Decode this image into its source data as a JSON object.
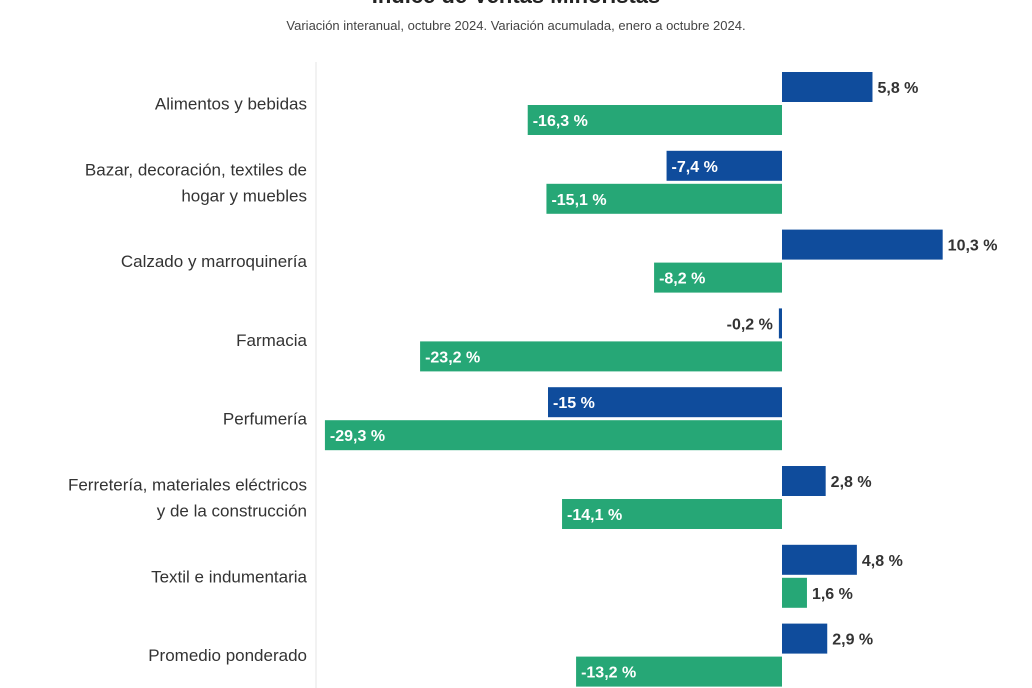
{
  "chart_data": {
    "type": "bar",
    "orientation": "horizontal",
    "title": "Índice de Ventas Minoristas",
    "subtitle": "Variación interanual, octubre 2024. Variación acumulada, enero a octubre 2024.",
    "categories": [
      [
        "Alimentos y bebidas"
      ],
      [
        "Bazar, decoración, textiles de",
        "hogar y muebles"
      ],
      [
        "Calzado y marroquinería"
      ],
      [
        "Farmacia"
      ],
      [
        "Perfumería"
      ],
      [
        "Ferretería, materiales eléctricos",
        "y de la construcción"
      ],
      [
        "Textil e indumentaria"
      ],
      [
        "Promedio ponderado"
      ]
    ],
    "series": [
      {
        "name": "Variación interanual, octubre 2024",
        "color": "#0f4c9c",
        "values": [
          5.8,
          -7.4,
          10.3,
          -0.2,
          -15,
          2.8,
          4.8,
          2.9
        ],
        "labels": [
          "5,8 %",
          "-7,4 %",
          "10,3 %",
          "-0,2 %",
          "-15 %",
          "2,8 %",
          "4,8 %",
          "2,9 %"
        ]
      },
      {
        "name": "Variación acumulada, enero a octubre 2024",
        "color": "#26a776",
        "values": [
          -16.3,
          -15.1,
          -8.2,
          -23.2,
          -29.3,
          -14.1,
          1.6,
          -13.2
        ],
        "labels": [
          "-16,3 %",
          "-15,1 %",
          "-8,2 %",
          "-23,2 %",
          "-29,3 %",
          "-14,1 %",
          "1,6 %",
          "-13,2 %"
        ]
      }
    ],
    "xlim": [
      -29.3,
      10.3
    ],
    "grid": false,
    "legend": "none"
  }
}
